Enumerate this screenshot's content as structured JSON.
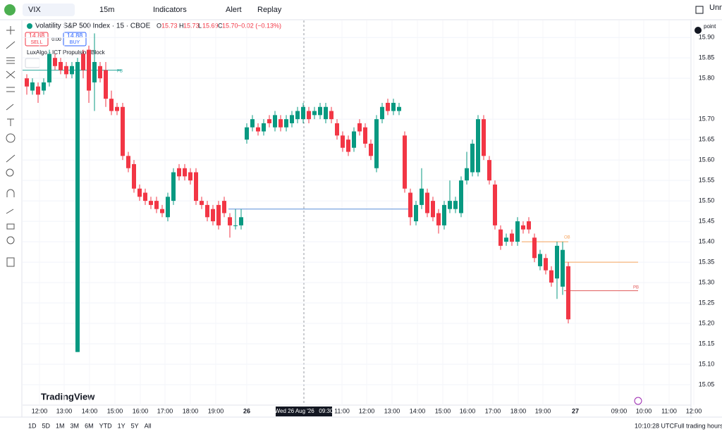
{
  "toolbar": {
    "symbol": "VIX",
    "interval": "15m",
    "indicators": "Indicators",
    "alert": "Alert",
    "replay": "Replay",
    "layout": "Unna"
  },
  "legend": {
    "title": "Volatility S&P 500 Index · 15 · CBOE",
    "o_label": "O",
    "o": "15.73",
    "h_label": "H",
    "h": "15.73",
    "l_label": "L",
    "l": "15.69",
    "c_label": "C",
    "c": "15.70",
    "change": "−0.02 (−0.13%)"
  },
  "trade": {
    "sell_price": "14.88",
    "sell": "SELL",
    "spread": "0.00",
    "buy_price": "14.88",
    "buy": "BUY"
  },
  "indicator": "LuxAlgo - ICT Propulsion Block",
  "point_label": "point",
  "brand": "TradingView",
  "chart_data": {
    "type": "candlestick",
    "open": [
      15.8,
      15.77,
      15.78,
      15.77,
      15.79,
      15.85,
      15.84,
      15.83,
      15.81,
      15.13,
      15.86,
      15.87,
      15.79,
      15.83,
      15.82,
      15.75,
      15.73,
      15.73,
      15.61,
      15.59,
      15.53,
      15.52,
      15.5,
      15.5,
      15.48,
      15.46,
      15.5,
      15.58,
      15.58,
      15.57,
      15.57,
      15.5,
      15.49,
      15.48,
      15.49,
      15.5,
      15.46,
      15.44,
      15.44,
      15.65,
      15.68,
      15.68,
      15.67,
      15.7,
      15.68,
      15.7,
      15.68,
      15.69,
      15.7,
      15.7,
      15.72,
      15.71,
      15.71,
      15.7,
      15.72,
      15.69,
      15.66,
      15.65,
      15.63,
      15.69,
      15.68,
      15.64,
      15.58,
      15.7,
      15.74,
      15.72,
      15.72,
      15.66,
      15.52,
      15.45,
      15.49,
      15.52,
      15.5,
      15.47,
      15.44,
      15.48,
      15.48,
      15.47,
      15.55,
      15.57,
      15.57,
      15.7,
      15.6,
      15.54,
      15.43,
      15.4,
      15.42,
      15.4,
      15.44,
      15.45,
      15.41,
      15.34,
      15.36,
      15.33,
      15.31,
      15.29,
      15.34
    ],
    "high": [
      15.81,
      15.8,
      15.79,
      15.8,
      15.87,
      15.86,
      15.85,
      15.84,
      15.84,
      15.85,
      15.87,
      15.88,
      15.91,
      15.84,
      15.84,
      15.77,
      15.74,
      15.74,
      15.62,
      15.6,
      15.54,
      15.53,
      15.51,
      15.51,
      15.49,
      15.52,
      15.58,
      15.59,
      15.59,
      15.58,
      15.58,
      15.51,
      15.5,
      15.49,
      15.5,
      15.51,
      15.47,
      15.48,
      15.48,
      15.69,
      15.71,
      15.69,
      15.7,
      15.71,
      15.72,
      15.71,
      15.71,
      15.72,
      15.73,
      15.74,
      15.73,
      15.73,
      15.74,
      15.74,
      15.73,
      15.7,
      15.67,
      15.66,
      15.68,
      15.7,
      15.69,
      15.65,
      15.71,
      15.74,
      15.75,
      15.75,
      15.74,
      15.67,
      15.53,
      15.5,
      15.58,
      15.53,
      15.51,
      15.48,
      15.5,
      15.55,
      15.51,
      15.56,
      15.62,
      15.65,
      15.71,
      15.71,
      15.61,
      15.55,
      15.44,
      15.42,
      15.43,
      15.46,
      15.45,
      15.46,
      15.42,
      15.38,
      15.37,
      15.34,
      15.4,
      15.4,
      15.35
    ],
    "low": [
      15.76,
      15.76,
      15.74,
      15.76,
      15.78,
      15.82,
      15.81,
      15.8,
      15.8,
      15.13,
      15.8,
      15.74,
      15.72,
      15.79,
      15.73,
      15.71,
      15.71,
      15.6,
      15.57,
      15.52,
      15.5,
      15.49,
      15.48,
      15.47,
      15.46,
      15.45,
      15.49,
      15.55,
      15.55,
      15.54,
      15.49,
      15.48,
      15.45,
      15.44,
      15.43,
      15.46,
      15.41,
      15.43,
      15.43,
      15.64,
      15.67,
      15.66,
      15.66,
      15.68,
      15.67,
      15.67,
      15.67,
      15.68,
      15.69,
      15.69,
      15.69,
      15.7,
      15.7,
      15.69,
      15.69,
      15.65,
      15.62,
      15.61,
      15.62,
      15.66,
      15.63,
      15.6,
      15.57,
      15.69,
      15.71,
      15.71,
      15.71,
      15.52,
      15.44,
      15.44,
      15.48,
      15.46,
      15.45,
      15.42,
      15.43,
      15.47,
      15.47,
      15.46,
      15.54,
      15.56,
      15.56,
      15.6,
      15.54,
      15.43,
      15.38,
      15.39,
      15.39,
      15.39,
      15.42,
      15.42,
      15.35,
      15.33,
      15.32,
      15.29,
      15.26,
      15.27,
      15.2
    ],
    "close": [
      15.78,
      15.79,
      15.76,
      15.79,
      15.86,
      15.83,
      15.82,
      15.81,
      15.83,
      15.84,
      15.82,
      15.77,
      15.84,
      15.8,
      15.75,
      15.72,
      15.72,
      15.61,
      15.58,
      15.53,
      15.51,
      15.5,
      15.49,
      15.48,
      15.47,
      15.51,
      15.57,
      15.56,
      15.56,
      15.55,
      15.5,
      15.49,
      15.46,
      15.45,
      15.44,
      15.47,
      15.44,
      15.44,
      15.46,
      15.68,
      15.7,
      15.67,
      15.69,
      15.69,
      15.71,
      15.68,
      15.7,
      15.71,
      15.72,
      15.73,
      15.7,
      15.72,
      15.73,
      15.73,
      15.7,
      15.66,
      15.63,
      15.62,
      15.67,
      15.67,
      15.64,
      15.61,
      15.7,
      15.73,
      15.72,
      15.74,
      15.73,
      15.53,
      15.46,
      15.49,
      15.53,
      15.47,
      15.46,
      15.44,
      15.49,
      15.5,
      15.5,
      15.55,
      15.58,
      15.64,
      15.7,
      15.61,
      15.55,
      15.44,
      15.39,
      15.41,
      15.4,
      15.45,
      15.43,
      15.43,
      15.36,
      15.37,
      15.33,
      15.3,
      15.39,
      15.38,
      15.21
    ],
    "up_color": "#089981",
    "down_color": "#f23645",
    "ylim": [
      15.0,
      15.94
    ],
    "yticks": [
      {
        "value": 15.9,
        "label": "15.90"
      },
      {
        "value": 15.85,
        "label": "15.85"
      },
      {
        "value": 15.8,
        "label": "15.80"
      },
      {
        "value": 15.7,
        "label": "15.70"
      },
      {
        "value": 15.65,
        "label": "15.65"
      },
      {
        "value": 15.6,
        "label": "15.60"
      },
      {
        "value": 15.55,
        "label": "15.55"
      },
      {
        "value": 15.5,
        "label": "15.50"
      },
      {
        "value": 15.45,
        "label": "15.45"
      },
      {
        "value": 15.4,
        "label": "15.40"
      },
      {
        "value": 15.35,
        "label": "15.35"
      },
      {
        "value": 15.3,
        "label": "15.30"
      },
      {
        "value": 15.25,
        "label": "15.25"
      },
      {
        "value": 15.2,
        "label": "15.20"
      },
      {
        "value": 15.15,
        "label": "15.15"
      },
      {
        "value": 15.1,
        "label": "15.10"
      },
      {
        "value": 15.05,
        "label": "15.05"
      }
    ],
    "x_labels": [
      "12:00",
      "13:00",
      "14:00",
      "15:00",
      "16:00",
      "17:00",
      "18:00",
      "19:00",
      "26",
      "11:00",
      "12:00",
      "13:00",
      "14:00",
      "15:00",
      "16:00",
      "17:00",
      "18:00",
      "19:00",
      "27",
      "09:00",
      "10:00",
      "11:00",
      "12:00"
    ],
    "crosshair_label": "Wed 26 Aug '26   09:30",
    "levels": [
      {
        "value": 15.48,
        "color": "#5b8fd9"
      },
      {
        "value": 15.82,
        "color": "#26a69a",
        "label": "PB"
      },
      {
        "value": 15.4,
        "color": "#f7a35c",
        "label": "OB"
      },
      {
        "value": 15.35,
        "color": "#f7a35c"
      },
      {
        "value": 15.28,
        "color": "#e05a5a",
        "label": "PB"
      }
    ],
    "grid": true
  },
  "bottom": {
    "ranges": [
      "1D",
      "5D",
      "1M",
      "3M",
      "6M",
      "YTD",
      "1Y",
      "5Y",
      "All"
    ],
    "clock": "10:10:28 UTC",
    "session": "Full trading hours"
  }
}
